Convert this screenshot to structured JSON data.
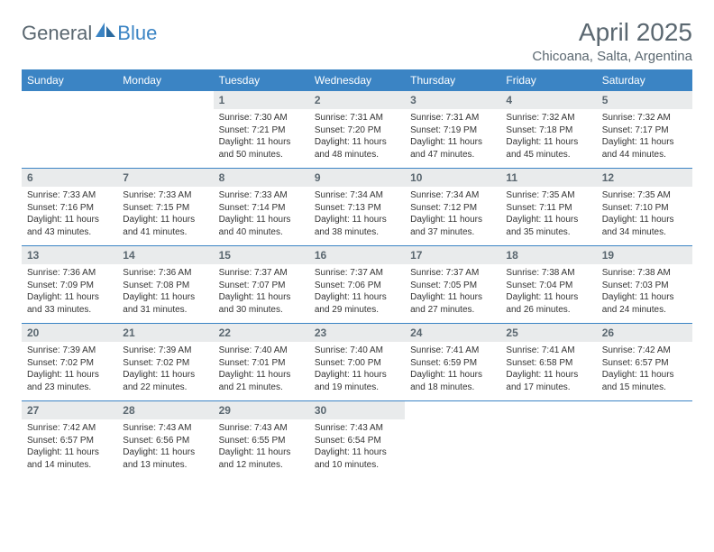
{
  "brand": {
    "part1": "General",
    "part2": "Blue"
  },
  "title": "April 2025",
  "location": "Chicoana, Salta, Argentina",
  "colors": {
    "header_bg": "#3b84c4",
    "header_text": "#ffffff",
    "daynum_bg": "#e9ebec",
    "text_muted": "#5a6770",
    "border": "#3b84c4",
    "page_bg": "#ffffff"
  },
  "dow": [
    "Sunday",
    "Monday",
    "Tuesday",
    "Wednesday",
    "Thursday",
    "Friday",
    "Saturday"
  ],
  "weeks": [
    [
      null,
      null,
      {
        "n": "1",
        "sr": "Sunrise: 7:30 AM",
        "ss": "Sunset: 7:21 PM",
        "dl": "Daylight: 11 hours and 50 minutes."
      },
      {
        "n": "2",
        "sr": "Sunrise: 7:31 AM",
        "ss": "Sunset: 7:20 PM",
        "dl": "Daylight: 11 hours and 48 minutes."
      },
      {
        "n": "3",
        "sr": "Sunrise: 7:31 AM",
        "ss": "Sunset: 7:19 PM",
        "dl": "Daylight: 11 hours and 47 minutes."
      },
      {
        "n": "4",
        "sr": "Sunrise: 7:32 AM",
        "ss": "Sunset: 7:18 PM",
        "dl": "Daylight: 11 hours and 45 minutes."
      },
      {
        "n": "5",
        "sr": "Sunrise: 7:32 AM",
        "ss": "Sunset: 7:17 PM",
        "dl": "Daylight: 11 hours and 44 minutes."
      }
    ],
    [
      {
        "n": "6",
        "sr": "Sunrise: 7:33 AM",
        "ss": "Sunset: 7:16 PM",
        "dl": "Daylight: 11 hours and 43 minutes."
      },
      {
        "n": "7",
        "sr": "Sunrise: 7:33 AM",
        "ss": "Sunset: 7:15 PM",
        "dl": "Daylight: 11 hours and 41 minutes."
      },
      {
        "n": "8",
        "sr": "Sunrise: 7:33 AM",
        "ss": "Sunset: 7:14 PM",
        "dl": "Daylight: 11 hours and 40 minutes."
      },
      {
        "n": "9",
        "sr": "Sunrise: 7:34 AM",
        "ss": "Sunset: 7:13 PM",
        "dl": "Daylight: 11 hours and 38 minutes."
      },
      {
        "n": "10",
        "sr": "Sunrise: 7:34 AM",
        "ss": "Sunset: 7:12 PM",
        "dl": "Daylight: 11 hours and 37 minutes."
      },
      {
        "n": "11",
        "sr": "Sunrise: 7:35 AM",
        "ss": "Sunset: 7:11 PM",
        "dl": "Daylight: 11 hours and 35 minutes."
      },
      {
        "n": "12",
        "sr": "Sunrise: 7:35 AM",
        "ss": "Sunset: 7:10 PM",
        "dl": "Daylight: 11 hours and 34 minutes."
      }
    ],
    [
      {
        "n": "13",
        "sr": "Sunrise: 7:36 AM",
        "ss": "Sunset: 7:09 PM",
        "dl": "Daylight: 11 hours and 33 minutes."
      },
      {
        "n": "14",
        "sr": "Sunrise: 7:36 AM",
        "ss": "Sunset: 7:08 PM",
        "dl": "Daylight: 11 hours and 31 minutes."
      },
      {
        "n": "15",
        "sr": "Sunrise: 7:37 AM",
        "ss": "Sunset: 7:07 PM",
        "dl": "Daylight: 11 hours and 30 minutes."
      },
      {
        "n": "16",
        "sr": "Sunrise: 7:37 AM",
        "ss": "Sunset: 7:06 PM",
        "dl": "Daylight: 11 hours and 29 minutes."
      },
      {
        "n": "17",
        "sr": "Sunrise: 7:37 AM",
        "ss": "Sunset: 7:05 PM",
        "dl": "Daylight: 11 hours and 27 minutes."
      },
      {
        "n": "18",
        "sr": "Sunrise: 7:38 AM",
        "ss": "Sunset: 7:04 PM",
        "dl": "Daylight: 11 hours and 26 minutes."
      },
      {
        "n": "19",
        "sr": "Sunrise: 7:38 AM",
        "ss": "Sunset: 7:03 PM",
        "dl": "Daylight: 11 hours and 24 minutes."
      }
    ],
    [
      {
        "n": "20",
        "sr": "Sunrise: 7:39 AM",
        "ss": "Sunset: 7:02 PM",
        "dl": "Daylight: 11 hours and 23 minutes."
      },
      {
        "n": "21",
        "sr": "Sunrise: 7:39 AM",
        "ss": "Sunset: 7:02 PM",
        "dl": "Daylight: 11 hours and 22 minutes."
      },
      {
        "n": "22",
        "sr": "Sunrise: 7:40 AM",
        "ss": "Sunset: 7:01 PM",
        "dl": "Daylight: 11 hours and 21 minutes."
      },
      {
        "n": "23",
        "sr": "Sunrise: 7:40 AM",
        "ss": "Sunset: 7:00 PM",
        "dl": "Daylight: 11 hours and 19 minutes."
      },
      {
        "n": "24",
        "sr": "Sunrise: 7:41 AM",
        "ss": "Sunset: 6:59 PM",
        "dl": "Daylight: 11 hours and 18 minutes."
      },
      {
        "n": "25",
        "sr": "Sunrise: 7:41 AM",
        "ss": "Sunset: 6:58 PM",
        "dl": "Daylight: 11 hours and 17 minutes."
      },
      {
        "n": "26",
        "sr": "Sunrise: 7:42 AM",
        "ss": "Sunset: 6:57 PM",
        "dl": "Daylight: 11 hours and 15 minutes."
      }
    ],
    [
      {
        "n": "27",
        "sr": "Sunrise: 7:42 AM",
        "ss": "Sunset: 6:57 PM",
        "dl": "Daylight: 11 hours and 14 minutes."
      },
      {
        "n": "28",
        "sr": "Sunrise: 7:43 AM",
        "ss": "Sunset: 6:56 PM",
        "dl": "Daylight: 11 hours and 13 minutes."
      },
      {
        "n": "29",
        "sr": "Sunrise: 7:43 AM",
        "ss": "Sunset: 6:55 PM",
        "dl": "Daylight: 11 hours and 12 minutes."
      },
      {
        "n": "30",
        "sr": "Sunrise: 7:43 AM",
        "ss": "Sunset: 6:54 PM",
        "dl": "Daylight: 11 hours and 10 minutes."
      },
      null,
      null,
      null
    ]
  ]
}
